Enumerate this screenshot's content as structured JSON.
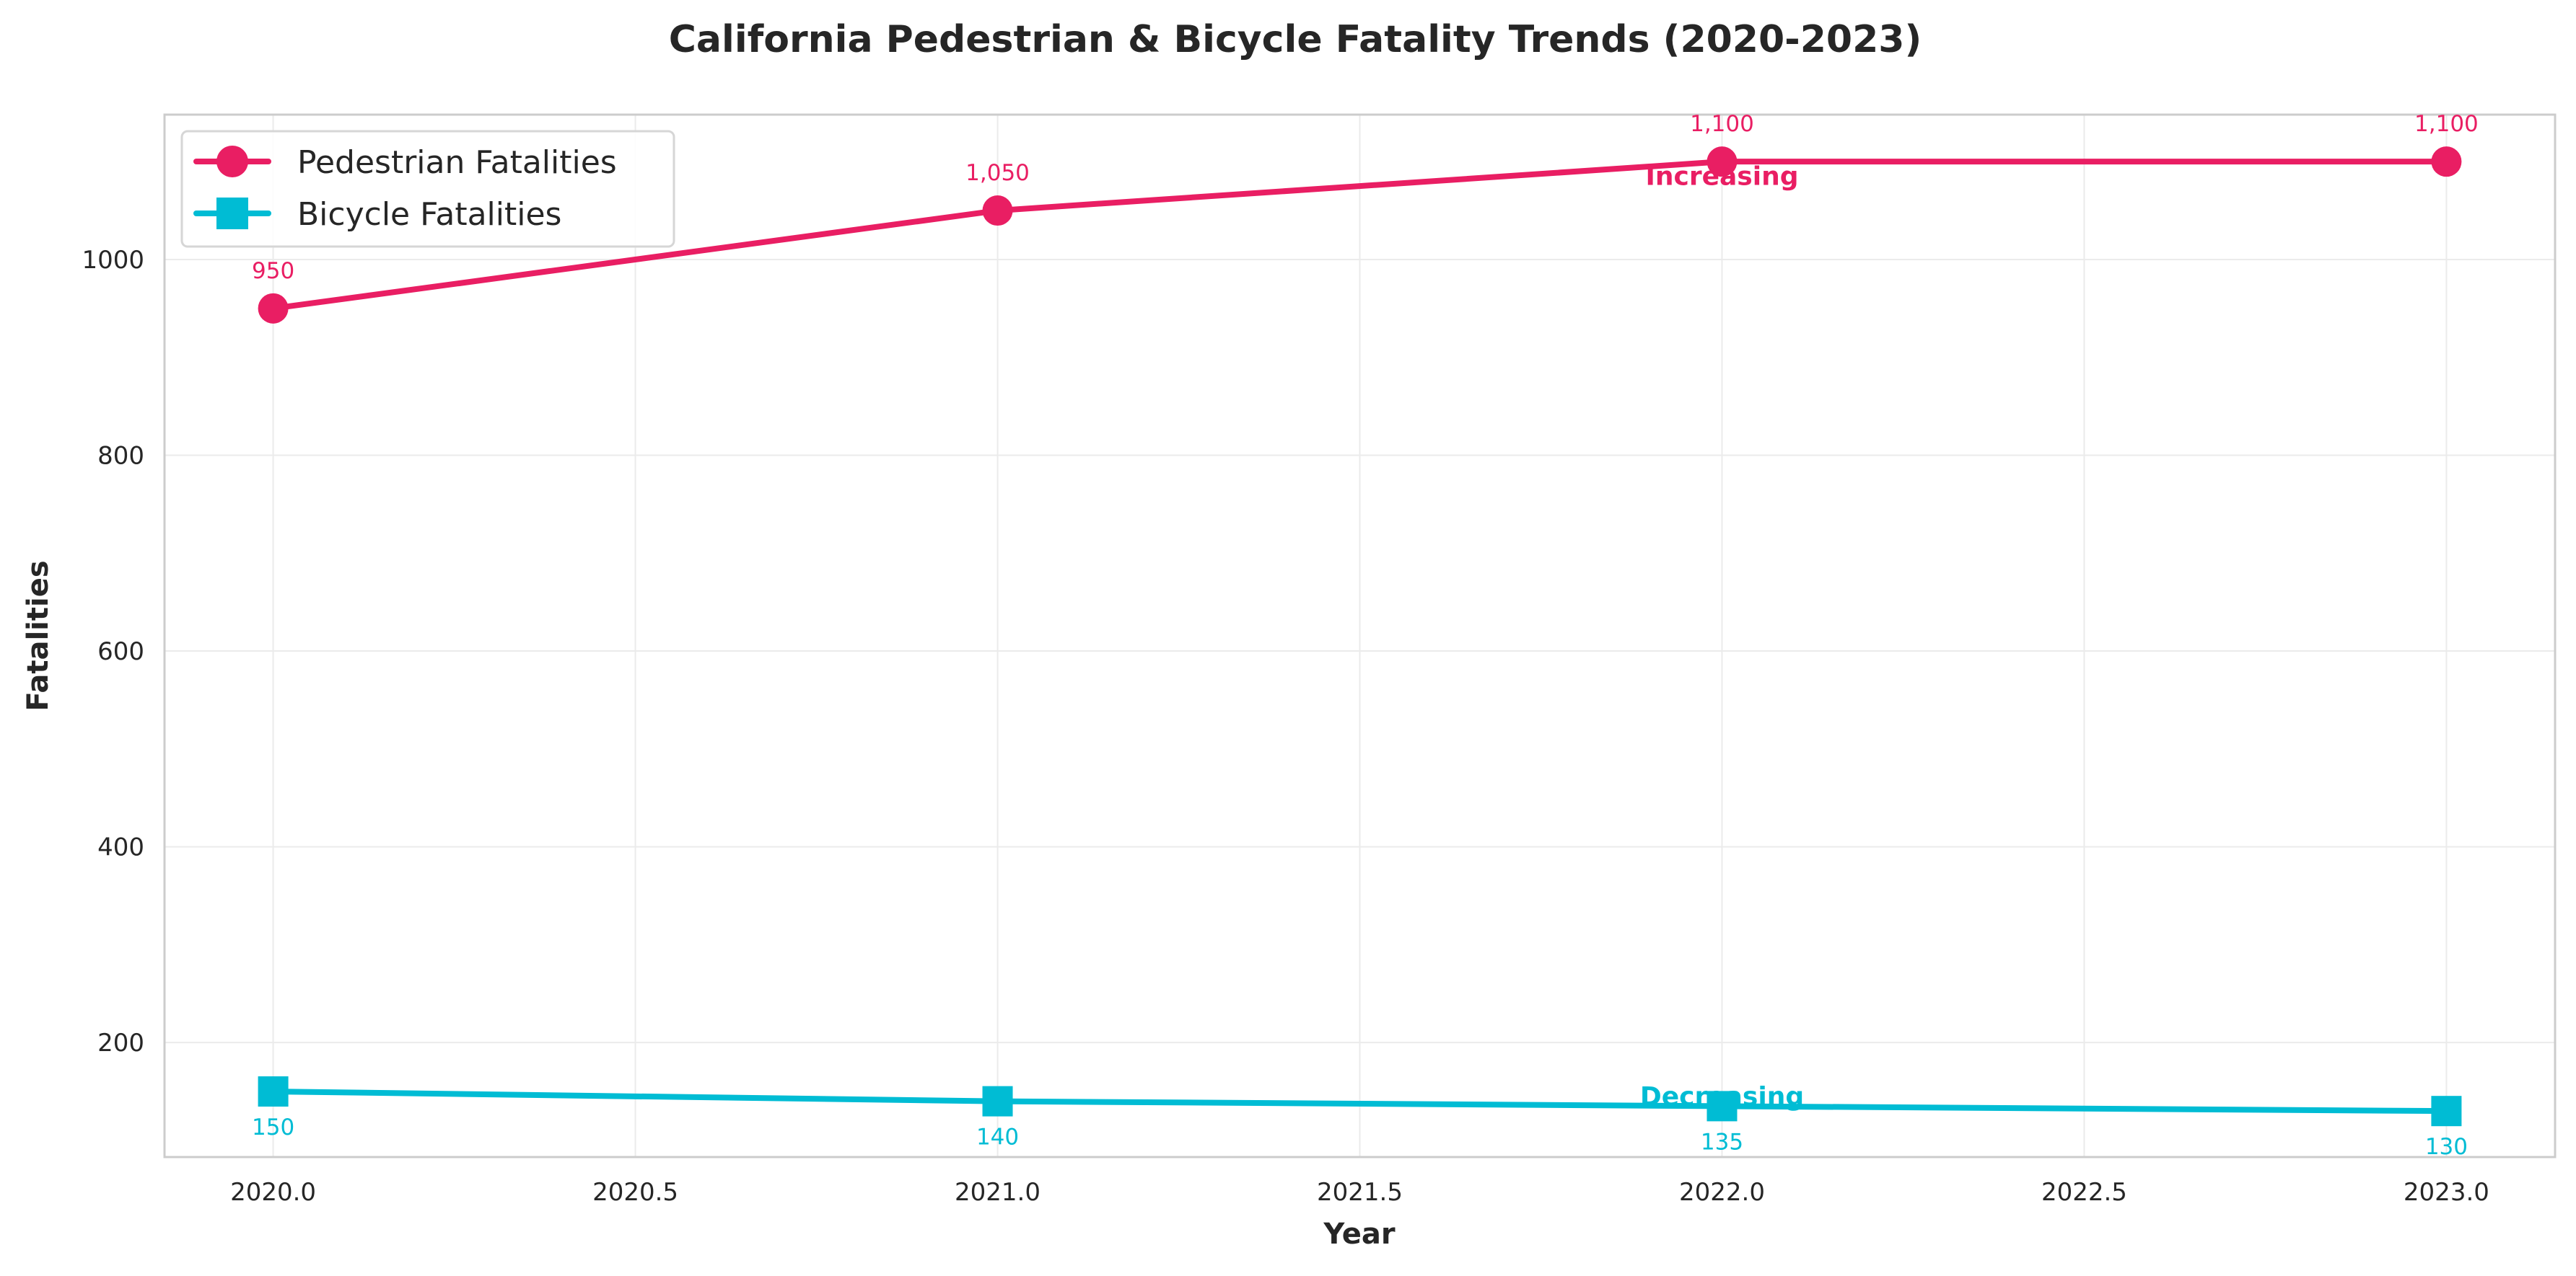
{
  "chart_data": {
    "type": "line",
    "title": "California Pedestrian & Bicycle Fatality Trends (2020-2023)",
    "xlabel": "Year",
    "ylabel": "Fatalities",
    "xlim": [
      2019.85,
      2023.15
    ],
    "ylim": [
      83,
      1148
    ],
    "xticks": [
      "2020.0",
      "2020.5",
      "2021.0",
      "2021.5",
      "2022.0",
      "2022.5",
      "2023.0"
    ],
    "yticks": [
      "200",
      "400",
      "600",
      "800",
      "1000"
    ],
    "grid": true,
    "legend_position": "top-left",
    "x": [
      2020,
      2021,
      2022,
      2023
    ],
    "series": [
      {
        "name": "Pedestrian Fatalities",
        "values": [
          950,
          1050,
          1100,
          1100
        ],
        "labels": [
          "950",
          "1,050",
          "1,100",
          "1,100"
        ],
        "color": "#E91E63",
        "marker": "circle",
        "label_position": "above"
      },
      {
        "name": "Bicycle Fatalities",
        "values": [
          150,
          140,
          135,
          130
        ],
        "labels": [
          "150",
          "140",
          "135",
          "130"
        ],
        "color": "#00BCD4",
        "marker": "square",
        "label_position": "below"
      }
    ],
    "annotations": [
      {
        "text": "Increasing",
        "x": 2022,
        "y": 1085,
        "color": "#E91E63"
      },
      {
        "text": "Decreasing",
        "x": 2022,
        "y": 145,
        "color": "#00BCD4"
      }
    ]
  }
}
